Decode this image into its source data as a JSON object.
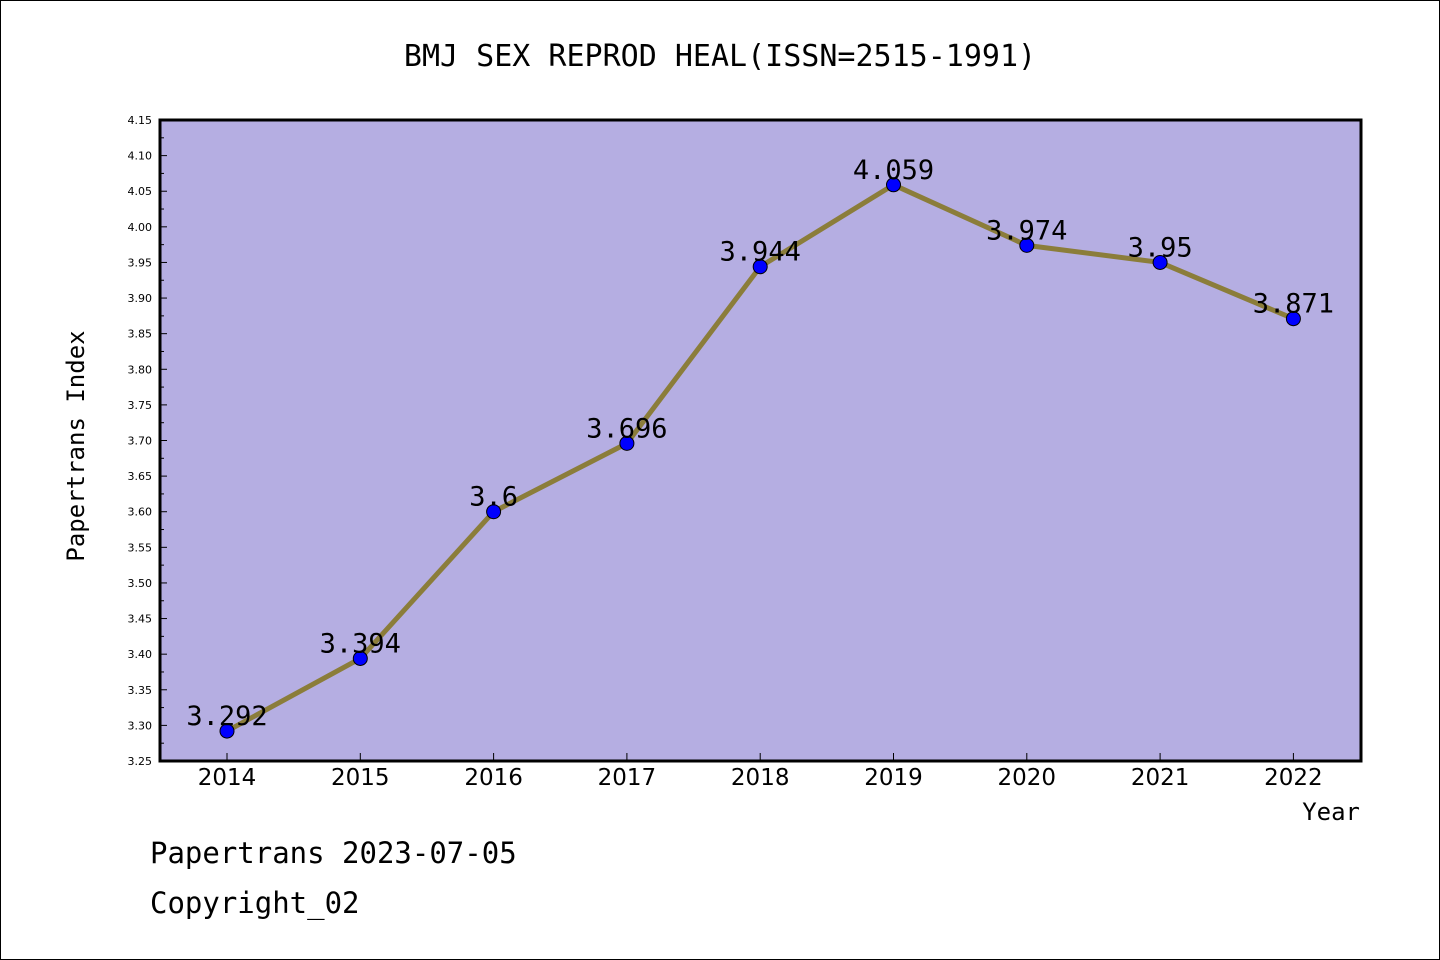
{
  "chart_data": {
    "type": "line",
    "title": "BMJ SEX REPROD HEAL(ISSN=2515-1991)",
    "xlabel": "Year",
    "ylabel": "Papertrans Index",
    "categories": [
      "2014",
      "2015",
      "2016",
      "2017",
      "2018",
      "2019",
      "2020",
      "2021",
      "2022"
    ],
    "values": [
      3.292,
      3.394,
      3.6,
      3.696,
      3.944,
      4.059,
      3.974,
      3.95,
      3.871
    ],
    "data_labels": [
      "3.292",
      "3.394",
      "3.6",
      "3.696",
      "3.944",
      "4.059",
      "3.974",
      "3.95",
      "3.871"
    ],
    "ylim": [
      3.25,
      4.15
    ],
    "yticks": [
      "3.25",
      "3.30",
      "3.35",
      "3.40",
      "3.45",
      "3.50",
      "3.55",
      "3.60",
      "3.65",
      "3.70",
      "3.75",
      "3.80",
      "3.85",
      "3.90",
      "3.95",
      "4.00",
      "4.05",
      "4.10",
      "4.15"
    ],
    "grid": false,
    "colors": {
      "plot_bg": "#b5aee2",
      "line": "#8b7d3a",
      "marker": "#0000ff"
    }
  },
  "footer": {
    "line1": "Papertrans 2023-07-05",
    "line2": "Copyright_02"
  }
}
